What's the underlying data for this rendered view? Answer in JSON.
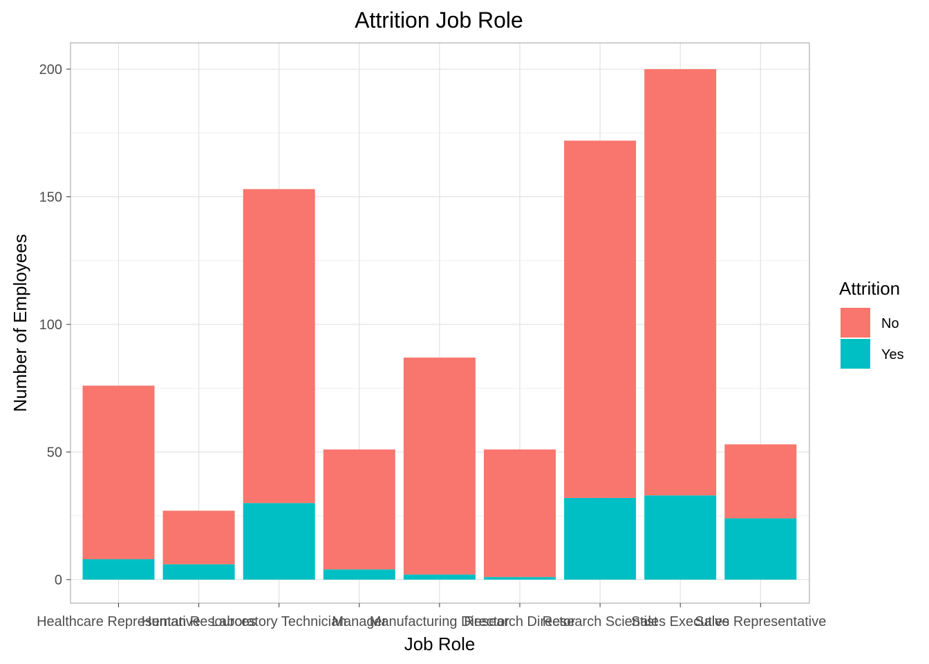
{
  "chart_data": {
    "type": "bar",
    "stacked": true,
    "title": "Attrition Job Role",
    "xlabel": "Job Role",
    "ylabel": "Number of Employees",
    "categories": [
      "Healthcare Representative",
      "Human Resources",
      "Laboratory Technician",
      "Manager",
      "Manufacturing Director",
      "Research Director",
      "Research Scientist",
      "Sales Executive",
      "Sales Representative"
    ],
    "series": [
      {
        "name": "No",
        "color": "#F8766D",
        "values": [
          68,
          21,
          123,
          47,
          85,
          50,
          140,
          167,
          29
        ]
      },
      {
        "name": "Yes",
        "color": "#00BFC4",
        "values": [
          8,
          6,
          30,
          4,
          2,
          1,
          32,
          33,
          24
        ]
      }
    ],
    "ylim": [
      0,
      210
    ],
    "yticks": [
      0,
      50,
      100,
      150,
      200
    ],
    "grid": true,
    "legend": {
      "title": "Attrition",
      "placement": "right"
    }
  }
}
